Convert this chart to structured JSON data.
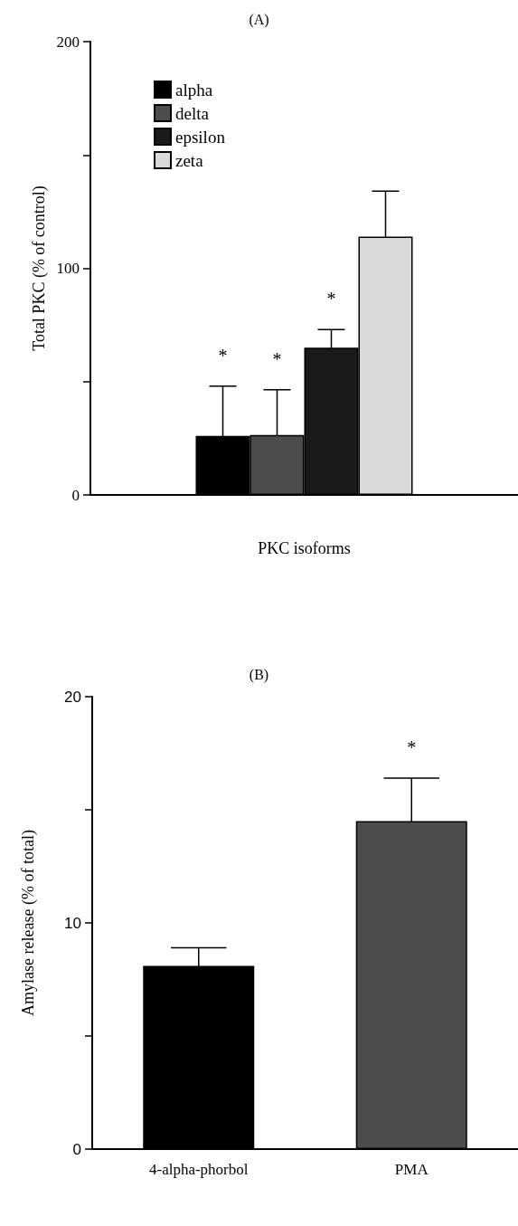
{
  "chart_data": [
    {
      "type": "bar",
      "title": "(A)",
      "xlabel": "PKC isoforms",
      "ylabel": "Total PKC (% of control)",
      "categories": [
        null
      ],
      "series": [
        {
          "name": "alpha",
          "color": "#000000",
          "values": [
            26
          ],
          "errors": [
            22
          ]
        },
        {
          "name": "delta",
          "color": "#4d4d4d",
          "values": [
            26.4
          ],
          "errors": [
            20
          ]
        },
        {
          "name": "epsilon",
          "color": "#1a1a1a",
          "values": [
            65
          ],
          "errors": [
            8
          ]
        },
        {
          "name": "zeta",
          "color": "#d9d9d9",
          "values": [
            114
          ],
          "errors": [
            20
          ]
        }
      ],
      "ylim": [
        0,
        200
      ],
      "yticks": [
        0,
        {
          "value": 50,
          "label": null
        },
        100,
        {
          "value": 150,
          "label": null
        },
        200
      ],
      "annotations": [
        "*",
        "*",
        "*"
      ],
      "legend": "top left",
      "grid": false
    },
    {
      "type": "bar",
      "title": "(B)",
      "ylabel": "Amylase release (% of total)",
      "categories": [
        "4-alpha-phorbol",
        "PMA"
      ],
      "values": [
        8.1,
        14.5
      ],
      "errors": [
        0.8,
        1.9
      ],
      "colors": [
        "#000000",
        "#4d4d4d"
      ],
      "ylim": [
        0,
        20
      ],
      "yticks": [
        0,
        {
          "value": 5,
          "label": null
        },
        10,
        {
          "value": 15,
          "label": null
        },
        20
      ],
      "annotations": [
        "*"
      ],
      "grid": false
    }
  ]
}
